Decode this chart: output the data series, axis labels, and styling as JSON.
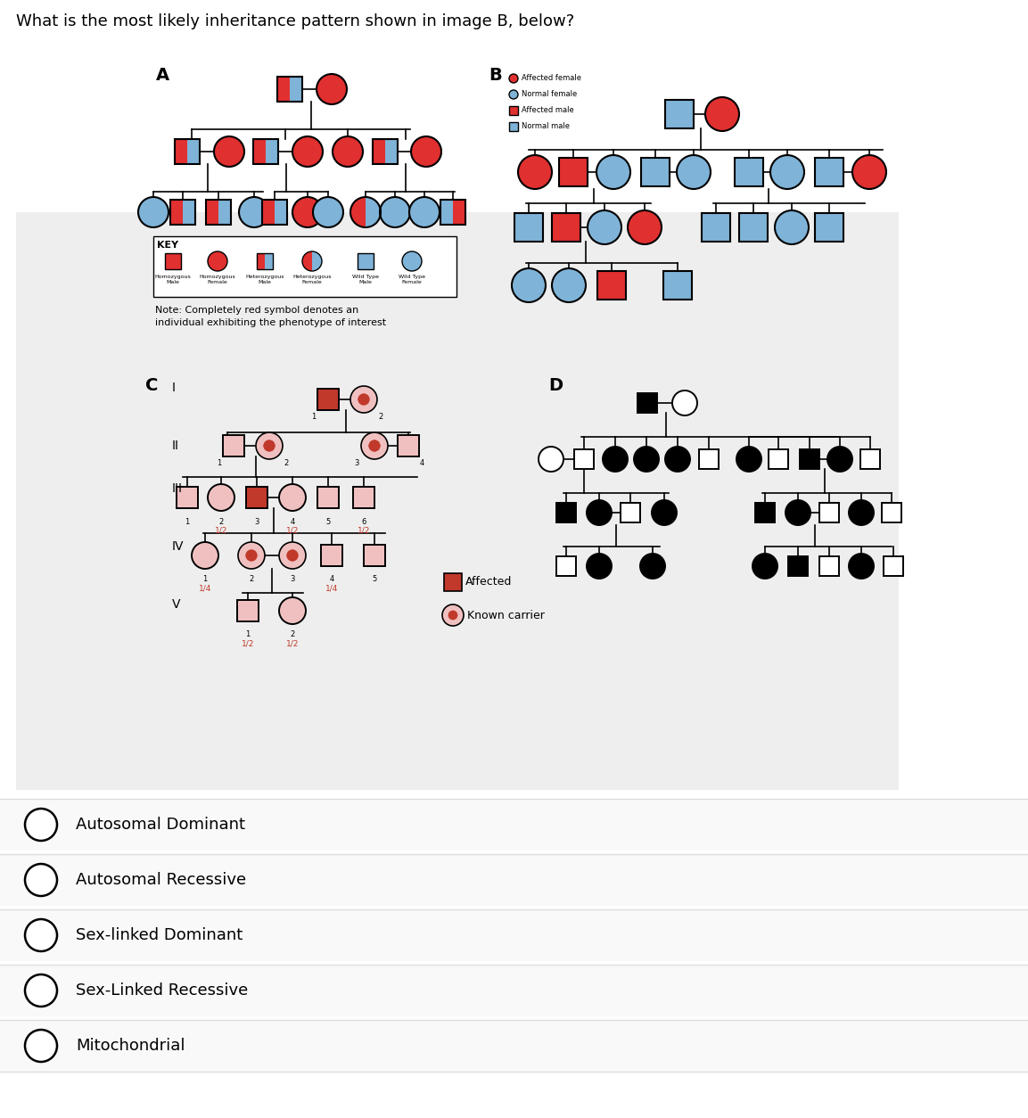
{
  "title": "What is the most likely inheritance pattern shown in image B, below?",
  "red": "#e03030",
  "blue": "#7fb3d8",
  "dark_red": "#c0392b",
  "light_pink": "#f0c0c0",
  "black": "#000000",
  "white": "#ffffff",
  "panel_bg": "#eeeeee",
  "options": [
    {
      "letter": "A",
      "text": "Autosomal Dominant"
    },
    {
      "letter": "B",
      "text": "Autosomal Recessive"
    },
    {
      "letter": "C",
      "text": "Sex-linked Dominant"
    },
    {
      "letter": "D",
      "text": "Sex-Linked Recessive"
    },
    {
      "letter": "E",
      "text": "Mitochondrial"
    }
  ]
}
